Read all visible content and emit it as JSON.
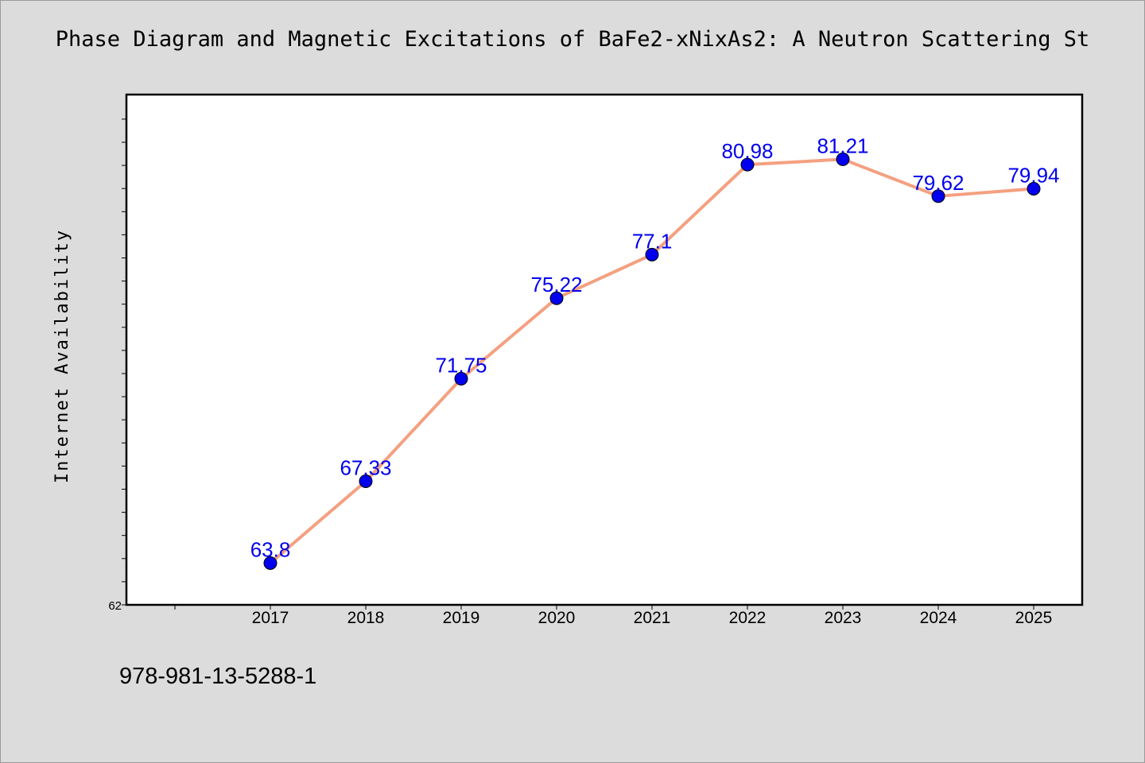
{
  "chart_data": {
    "type": "line",
    "title": "Phase Diagram and Magnetic Excitations of BaFe2-xNixAs2: A Neutron Scattering St",
    "xlabel": "",
    "ylabel": "Internet Availability",
    "x": [
      "2017",
      "2018",
      "2019",
      "2020",
      "2021",
      "2022",
      "2023",
      "2024",
      "2025"
    ],
    "values": [
      63.8,
      67.33,
      71.75,
      75.22,
      77.1,
      80.98,
      81.21,
      79.62,
      79.94
    ],
    "data_labels": [
      "63.8",
      "67.33",
      "71.75",
      "75.22",
      "77.1",
      "80.98",
      "81.21",
      "79.62",
      "79.94"
    ],
    "y_tick_labels": [
      "62"
    ],
    "ylim": [
      62,
      84
    ],
    "grid": false,
    "line_color": "#f4a080",
    "marker_color": "#0000ee",
    "label_color": "#0000ee"
  },
  "footer": {
    "isbn": "978-981-13-5288-1"
  }
}
